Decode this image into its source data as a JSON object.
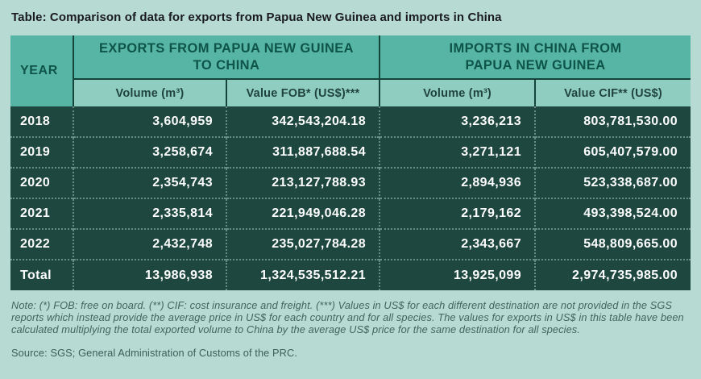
{
  "title": "Table: Comparison of data for exports from Papua New Guinea and imports in China",
  "table": {
    "year_header": "YEAR",
    "groups": [
      {
        "label_line1": "EXPORTS FROM PAPUA NEW GUINEA",
        "label_line2": "TO CHINA",
        "columns": [
          "Volume (m³)",
          "Value FOB* (US$)***"
        ]
      },
      {
        "label_line1": "IMPORTS IN CHINA FROM",
        "label_line2": "PAPUA NEW GUINEA",
        "columns": [
          "Volume (m³)",
          "Value CIF** (US$)"
        ]
      }
    ],
    "rows": [
      {
        "year": "2018",
        "export_volume": "3,604,959",
        "export_value": "342,543,204.18",
        "import_volume": "3,236,213",
        "import_value": "803,781,530.00"
      },
      {
        "year": "2019",
        "export_volume": "3,258,674",
        "export_value": "311,887,688.54",
        "import_volume": "3,271,121",
        "import_value": "605,407,579.00"
      },
      {
        "year": "2020",
        "export_volume": "2,354,743",
        "export_value": "213,127,788.93",
        "import_volume": "2,894,936",
        "import_value": "523,338,687.00"
      },
      {
        "year": "2021",
        "export_volume": "2,335,814",
        "export_value": "221,949,046.28",
        "import_volume": "2,179,162",
        "import_value": "493,398,524.00"
      },
      {
        "year": "2022",
        "export_volume": "2,432,748",
        "export_value": "235,027,784.28",
        "import_volume": "2,343,667",
        "import_value": "548,809,665.00"
      }
    ],
    "total": {
      "label": "Total",
      "export_volume": "13,986,938",
      "export_value": "1,324,535,512.21",
      "import_volume": "13,925,099",
      "import_value": "2,974,735,985.00"
    }
  },
  "note": "Note: (*) FOB: free on board. (**) CIF: cost insurance and freight. (***) Values in US$ for each different destination are not provided in the SGS reports which instead provide the average price in US$ for each country and for all species. The values for exports in US$ in this table have been calculated multiplying the total exported volume to China by the average US$ price for the same destination for all species.",
  "source": "Source: SGS; General Administration of Customs of the PRC.",
  "colors": {
    "page_background": "#b7dbd3",
    "header_band": "#56b5a5",
    "subheader_band": "#8fcdc0",
    "data_row": "#1d473f",
    "header_text": "#0e5449",
    "data_text": "#fdfdfd",
    "title_text": "#1a1a21",
    "note_text": "#44635d"
  },
  "chart_data": {
    "type": "table",
    "title": "Table: Comparison of data for exports from Papua New Guinea and imports in China",
    "columns": [
      "Year",
      "Exports from Papua New Guinea to China — Volume (m³)",
      "Exports from Papua New Guinea to China — Value FOB* (US$)***",
      "Imports in China from Papua New Guinea — Volume (m³)",
      "Imports in China from Papua New Guinea — Value CIF** (US$)"
    ],
    "rows": [
      [
        "2018",
        3604959,
        342543204.18,
        3236213,
        803781530.0
      ],
      [
        "2019",
        3258674,
        311887688.54,
        3271121,
        605407579.0
      ],
      [
        "2020",
        2354743,
        213127788.93,
        2894936,
        523338687.0
      ],
      [
        "2021",
        2335814,
        221949046.28,
        2179162,
        493398524.0
      ],
      [
        "2022",
        2432748,
        235027784.28,
        2343667,
        548809665.0
      ],
      [
        "Total",
        13986938,
        1324535512.21,
        13925099,
        2974735985.0
      ]
    ],
    "footnote": "Note: (*) FOB: free on board. (**) CIF: cost insurance and freight. (***) Values in US$ for each different destination are not provided in the SGS reports which instead provide the average price in US$ for each country and for all species. The values for exports in US$ in this table have been calculated multiplying the total exported volume to China by the average US$ price for the same destination for all species.",
    "source": "Source: SGS; General Administration of Customs of the PRC."
  }
}
